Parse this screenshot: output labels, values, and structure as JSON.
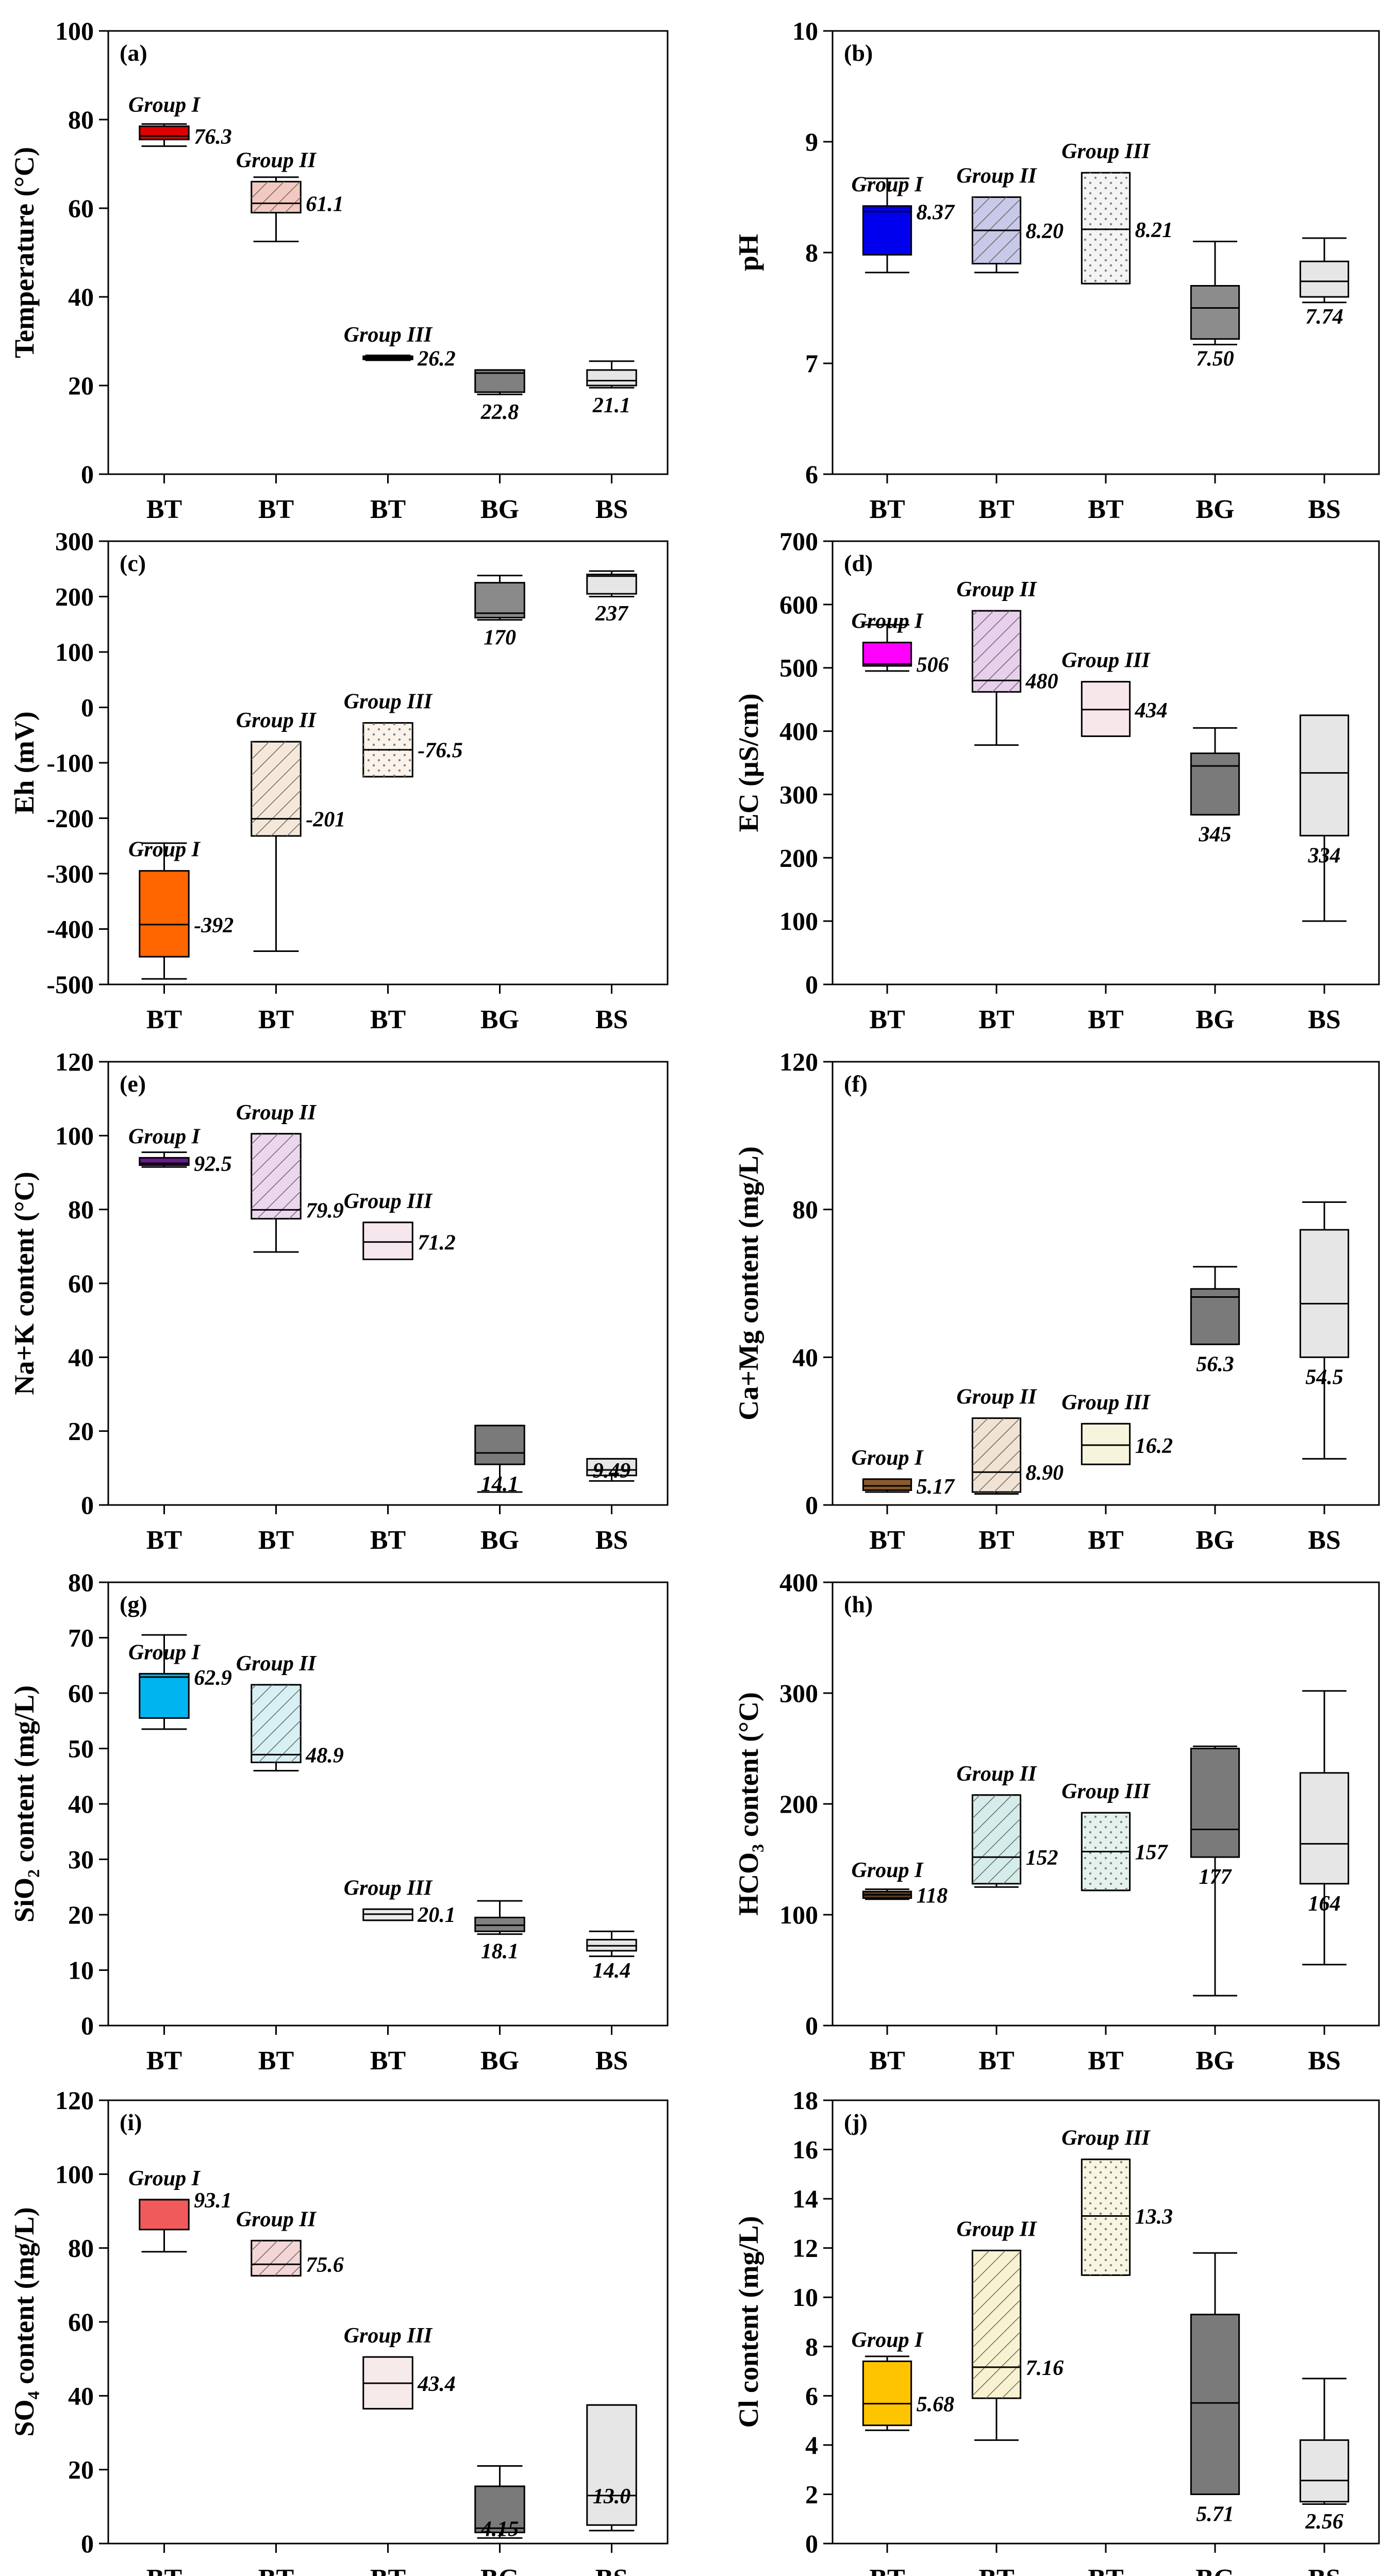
{
  "chart_data": [
    {
      "id": "a",
      "type": "box",
      "tag": "(a)",
      "ylabel": "Temperature (°C)",
      "ylim": [
        0,
        100
      ],
      "ticks": [
        0,
        20,
        40,
        60,
        80,
        100
      ],
      "categories": [
        "BT",
        "BT",
        "BT",
        "BG",
        "BS"
      ],
      "boxes": [
        {
          "min": 74,
          "q1": 75.5,
          "median": 76.3,
          "q3": 78.5,
          "max": 79,
          "fill": "#e00000",
          "pattern": "none",
          "value_label": "76.3",
          "group": "Group I"
        },
        {
          "min": 52.5,
          "q1": 59,
          "median": 61.1,
          "q3": 66,
          "max": 67,
          "fill": "#f2c8c0",
          "pattern": "hatch",
          "value_label": "61.1",
          "group": "Group II"
        },
        {
          "min": 25.7,
          "q1": 25.9,
          "median": 26.2,
          "q3": 26.6,
          "max": 26.8,
          "fill": "#000000",
          "pattern": "none",
          "value_label": "26.2",
          "group": "Group III"
        },
        {
          "min": 18,
          "q1": 18.5,
          "median": 22.8,
          "q3": 23.5,
          "max": 23.5,
          "fill": "#808080",
          "pattern": "none",
          "value_label": "22.8",
          "group": ""
        },
        {
          "min": 19.5,
          "q1": 20,
          "median": 21.1,
          "q3": 23.5,
          "max": 25.5,
          "fill": "#e6e6e6",
          "pattern": "none",
          "value_label": "21.1",
          "group": ""
        }
      ]
    },
    {
      "id": "b",
      "type": "box",
      "tag": "(b)",
      "ylabel": "pH",
      "ylim": [
        6,
        10
      ],
      "ticks": [
        6,
        7,
        8,
        9,
        10
      ],
      "categories": [
        "BT",
        "BT",
        "BT",
        "BG",
        "BS"
      ],
      "boxes": [
        {
          "min": 7.82,
          "q1": 7.98,
          "median": 8.37,
          "q3": 8.42,
          "max": 8.67,
          "fill": "#0000ee",
          "pattern": "none",
          "value_label": "8.37",
          "group": "Group I"
        },
        {
          "min": 7.82,
          "q1": 7.9,
          "median": 8.2,
          "q3": 8.5,
          "max": 8.5,
          "fill": "#c8c8e8",
          "pattern": "hatch",
          "value_label": "8.20",
          "group": "Group II"
        },
        {
          "min": 7.72,
          "q1": 7.72,
          "median": 8.21,
          "q3": 8.72,
          "max": 8.72,
          "fill": "#f4f4f4",
          "pattern": "dots",
          "value_label": "8.21",
          "group": "Group III"
        },
        {
          "min": 7.17,
          "q1": 7.22,
          "median": 7.5,
          "q3": 7.7,
          "max": 8.1,
          "fill": "#8c8c8c",
          "pattern": "none",
          "value_label": "7.50",
          "group": ""
        },
        {
          "min": 7.55,
          "q1": 7.6,
          "median": 7.74,
          "q3": 7.92,
          "max": 8.13,
          "fill": "#e6e6e6",
          "pattern": "none",
          "value_label": "7.74",
          "group": ""
        }
      ]
    },
    {
      "id": "c",
      "type": "box",
      "tag": "(c)",
      "ylabel": "Eh (mV)",
      "ylim": [
        -500,
        300
      ],
      "ticks": [
        -500,
        -400,
        -300,
        -200,
        -100,
        0,
        100,
        200,
        300
      ],
      "categories": [
        "BT",
        "BT",
        "BT",
        "BG",
        "BS"
      ],
      "boxes": [
        {
          "min": -490,
          "q1": -450,
          "median": -392,
          "q3": -295,
          "max": -245,
          "fill": "#ff6600",
          "pattern": "none",
          "value_label": "-392",
          "group": "Group I"
        },
        {
          "min": -440,
          "q1": -232,
          "median": -201,
          "q3": -62,
          "max": -62,
          "fill": "#f6e8d8",
          "pattern": "hatch",
          "value_label": "-201",
          "group": "Group II"
        },
        {
          "min": -125,
          "q1": -125,
          "median": -76.5,
          "q3": -28,
          "max": -28,
          "fill": "#fbf3ea",
          "pattern": "dots",
          "value_label": "-76.5",
          "group": "Group III"
        },
        {
          "min": 158,
          "q1": 162,
          "median": 170,
          "q3": 225,
          "max": 238,
          "fill": "#8a8a8a",
          "pattern": "none",
          "value_label": "170",
          "group": ""
        },
        {
          "min": 200,
          "q1": 205,
          "median": 237,
          "q3": 240,
          "max": 246,
          "fill": "#e6e6e6",
          "pattern": "none",
          "value_label": "237",
          "group": ""
        }
      ]
    },
    {
      "id": "d",
      "type": "box",
      "tag": "(d)",
      "ylabel": "EC (μS/cm)",
      "ylim": [
        0,
        700
      ],
      "ticks": [
        0,
        100,
        200,
        300,
        400,
        500,
        600,
        700
      ],
      "categories": [
        "BT",
        "BT",
        "BT",
        "BG",
        "BS"
      ],
      "boxes": [
        {
          "min": 495,
          "q1": 503,
          "median": 506,
          "q3": 540,
          "max": 568,
          "fill": "#ff00ff",
          "pattern": "none",
          "value_label": "506",
          "group": "Group I"
        },
        {
          "min": 378,
          "q1": 462,
          "median": 480,
          "q3": 590,
          "max": 590,
          "fill": "#e8d0ec",
          "pattern": "hatch",
          "value_label": "480",
          "group": "Group II"
        },
        {
          "min": 392,
          "q1": 392,
          "median": 434,
          "q3": 478,
          "max": 478,
          "fill": "#f7e6ea",
          "pattern": "none",
          "value_label": "434",
          "group": "Group III"
        },
        {
          "min": 268,
          "q1": 268,
          "median": 345,
          "q3": 365,
          "max": 405,
          "fill": "#7a7a7a",
          "pattern": "none",
          "value_label": "345",
          "group": ""
        },
        {
          "min": 100,
          "q1": 235,
          "median": 334,
          "q3": 425,
          "max": 425,
          "fill": "#e6e6e6",
          "pattern": "none",
          "value_label": "334",
          "group": ""
        }
      ]
    },
    {
      "id": "e",
      "type": "box",
      "tag": "(e)",
      "ylabel": "Na+K content (°C)",
      "ylim": [
        0,
        120
      ],
      "ticks": [
        0,
        20,
        40,
        60,
        80,
        100,
        120
      ],
      "categories": [
        "BT",
        "BT",
        "BT",
        "BG",
        "BS"
      ],
      "boxes": [
        {
          "min": 91.5,
          "q1": 92,
          "median": 92.5,
          "q3": 94,
          "max": 95.5,
          "fill": "#6a1a8a",
          "pattern": "none",
          "value_label": "92.5",
          "group": "Group I"
        },
        {
          "min": 68.5,
          "q1": 77.5,
          "median": 79.9,
          "q3": 100.5,
          "max": 100.5,
          "fill": "#ecd6ee",
          "pattern": "hatch",
          "value_label": "79.9",
          "group": "Group II"
        },
        {
          "min": 66.5,
          "q1": 66.5,
          "median": 71.2,
          "q3": 76.5,
          "max": 76.5,
          "fill": "#f6e6ee",
          "pattern": "none",
          "value_label": "71.2",
          "group": "Group III"
        },
        {
          "min": 3.5,
          "q1": 11,
          "median": 14.1,
          "q3": 21.5,
          "max": 21.5,
          "fill": "#7a7a7a",
          "pattern": "none",
          "value_label": "14.1",
          "group": ""
        },
        {
          "min": 6.5,
          "q1": 8,
          "median": 9.49,
          "q3": 12.5,
          "max": 12.5,
          "fill": "#e6e6e6",
          "pattern": "none",
          "value_label": "9.49",
          "group": ""
        }
      ]
    },
    {
      "id": "f",
      "type": "box",
      "tag": "(f)",
      "ylabel": "Ca+Mg content (mg/L)",
      "ylim": [
        0,
        120
      ],
      "ticks": [
        0,
        40,
        80,
        120
      ],
      "categories": [
        "BT",
        "BT",
        "BT",
        "BG",
        "BS"
      ],
      "boxes": [
        {
          "min": 3.5,
          "q1": 4,
          "median": 5.17,
          "q3": 7,
          "max": 7,
          "fill": "#8b5a2b",
          "pattern": "none",
          "value_label": "5.17",
          "group": "Group I"
        },
        {
          "min": 3,
          "q1": 3.5,
          "median": 8.9,
          "q3": 23.5,
          "max": 23.5,
          "fill": "#f1e3d3",
          "pattern": "hatch",
          "value_label": "8.90",
          "group": "Group II"
        },
        {
          "min": 11,
          "q1": 11,
          "median": 16.2,
          "q3": 22,
          "max": 22,
          "fill": "#f6f4dc",
          "pattern": "none",
          "value_label": "16.2",
          "group": "Group III"
        },
        {
          "min": 43.5,
          "q1": 43.5,
          "median": 56.3,
          "q3": 58.5,
          "max": 64.5,
          "fill": "#7a7a7a",
          "pattern": "none",
          "value_label": "56.3",
          "group": ""
        },
        {
          "min": 12.5,
          "q1": 40,
          "median": 54.5,
          "q3": 74.5,
          "max": 82,
          "fill": "#e6e6e6",
          "pattern": "none",
          "value_label": "54.5",
          "group": ""
        }
      ]
    },
    {
      "id": "g",
      "type": "box",
      "tag": "(g)",
      "ylabel": "SiO₂ content (mg/L)",
      "ylim": [
        0,
        80
      ],
      "ticks": [
        0,
        10,
        20,
        30,
        40,
        50,
        60,
        70,
        80
      ],
      "categories": [
        "BT",
        "BT",
        "BT",
        "BG",
        "BS"
      ],
      "boxes": [
        {
          "min": 53.5,
          "q1": 55.5,
          "median": 62.9,
          "q3": 63.5,
          "max": 70.5,
          "fill": "#00b4f0",
          "pattern": "none",
          "value_label": "62.9",
          "group": "Group I"
        },
        {
          "min": 46,
          "q1": 47.5,
          "median": 48.9,
          "q3": 61.5,
          "max": 61.5,
          "fill": "#d6f0f4",
          "pattern": "hatch",
          "value_label": "48.9",
          "group": "Group II"
        },
        {
          "min": 19,
          "q1": 19,
          "median": 20.1,
          "q3": 21,
          "max": 21,
          "fill": "#ececec",
          "pattern": "none",
          "value_label": "20.1",
          "group": "Group III"
        },
        {
          "min": 16.5,
          "q1": 17,
          "median": 18.1,
          "q3": 19.5,
          "max": 22.5,
          "fill": "#808080",
          "pattern": "none",
          "value_label": "18.1",
          "group": ""
        },
        {
          "min": 12.5,
          "q1": 13.5,
          "median": 14.4,
          "q3": 15.5,
          "max": 17,
          "fill": "#e6e6e6",
          "pattern": "none",
          "value_label": "14.4",
          "group": ""
        }
      ]
    },
    {
      "id": "h",
      "type": "box",
      "tag": "(h)",
      "ylabel": "HCO₃ content (°C)",
      "ylim": [
        0,
        400
      ],
      "ticks": [
        0,
        100,
        200,
        300,
        400
      ],
      "categories": [
        "BT",
        "BT",
        "BT",
        "BG",
        "BS"
      ],
      "boxes": [
        {
          "min": 114,
          "q1": 115,
          "median": 118,
          "q3": 121,
          "max": 123,
          "fill": "#5a3a20",
          "pattern": "none",
          "value_label": "118",
          "group": "Group I"
        },
        {
          "min": 125,
          "q1": 128,
          "median": 152,
          "q3": 208,
          "max": 208,
          "fill": "#d4ecea",
          "pattern": "hatch",
          "value_label": "152",
          "group": "Group II"
        },
        {
          "min": 122,
          "q1": 122,
          "median": 157,
          "q3": 192,
          "max": 192,
          "fill": "#e4f2ee",
          "pattern": "dots",
          "value_label": "157",
          "group": "Group III"
        },
        {
          "min": 27,
          "q1": 152,
          "median": 177,
          "q3": 250,
          "max": 252,
          "fill": "#7a7a7a",
          "pattern": "none",
          "value_label": "177",
          "group": ""
        },
        {
          "min": 55,
          "q1": 128,
          "median": 164,
          "q3": 228,
          "max": 302,
          "fill": "#e6e6e6",
          "pattern": "none",
          "value_label": "164",
          "group": ""
        }
      ]
    },
    {
      "id": "i",
      "type": "box",
      "tag": "(i)",
      "ylabel": "SO₄ content (mg/L)",
      "ylim": [
        0,
        120
      ],
      "ticks": [
        0,
        20,
        40,
        60,
        80,
        100,
        120
      ],
      "categories": [
        "BT",
        "BT",
        "BT",
        "BG",
        "BS"
      ],
      "boxes": [
        {
          "min": 79,
          "q1": 85,
          "median": 93.1,
          "q3": 93.1,
          "max": 93.1,
          "fill": "#f05a5a",
          "pattern": "none",
          "value_label": "93.1",
          "group": "Group I"
        },
        {
          "min": 72.5,
          "q1": 72.5,
          "median": 75.6,
          "q3": 82,
          "max": 82,
          "fill": "#f4d6d6",
          "pattern": "hatch",
          "value_label": "75.6",
          "group": "Group II"
        },
        {
          "min": 36.5,
          "q1": 36.5,
          "median": 43.4,
          "q3": 50.5,
          "max": 50.5,
          "fill": "#f6eaea",
          "pattern": "none",
          "value_label": "43.4",
          "group": "Group III"
        },
        {
          "min": 1.5,
          "q1": 3,
          "median": 4.15,
          "q3": 15.5,
          "max": 21,
          "fill": "#7a7a7a",
          "pattern": "none",
          "value_label": "4.15",
          "group": ""
        },
        {
          "min": 3.5,
          "q1": 5,
          "median": 13,
          "q3": 37.5,
          "max": 37.5,
          "fill": "#e6e6e6",
          "pattern": "none",
          "value_label": "13.0",
          "group": ""
        }
      ]
    },
    {
      "id": "j",
      "type": "box",
      "tag": "(j)",
      "ylabel": "Cl content (mg/L)",
      "ylim": [
        0,
        18
      ],
      "ticks": [
        0,
        2,
        4,
        6,
        8,
        10,
        12,
        14,
        16,
        18
      ],
      "categories": [
        "BT",
        "BT",
        "BT",
        "BG",
        "BS"
      ],
      "boxes": [
        {
          "min": 4.6,
          "q1": 4.8,
          "median": 5.68,
          "q3": 7.4,
          "max": 7.6,
          "fill": "#ffc400",
          "pattern": "none",
          "value_label": "5.68",
          "group": "Group I"
        },
        {
          "min": 4.2,
          "q1": 5.9,
          "median": 7.16,
          "q3": 11.9,
          "max": 11.9,
          "fill": "#f8f2d0",
          "pattern": "hatch",
          "value_label": "7.16",
          "group": "Group II"
        },
        {
          "min": 10.9,
          "q1": 10.9,
          "median": 13.3,
          "q3": 15.6,
          "max": 15.6,
          "fill": "#f8f6e0",
          "pattern": "dots",
          "value_label": "13.3",
          "group": "Group III"
        },
        {
          "min": 2,
          "q1": 2,
          "median": 5.71,
          "q3": 9.3,
          "max": 11.8,
          "fill": "#7a7a7a",
          "pattern": "none",
          "value_label": "5.71",
          "group": ""
        },
        {
          "min": 1.6,
          "q1": 1.7,
          "median": 2.56,
          "q3": 4.2,
          "max": 6.7,
          "fill": "#e6e6e6",
          "pattern": "none",
          "value_label": "2.56",
          "group": ""
        }
      ]
    }
  ]
}
